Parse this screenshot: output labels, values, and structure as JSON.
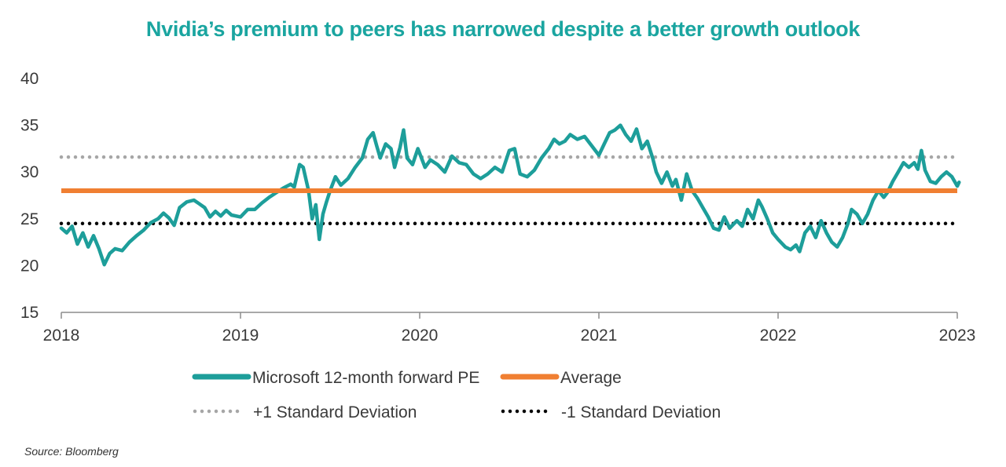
{
  "chart_data": {
    "type": "line",
    "title": "Nvidia’s premium to peers has narrowed despite a better growth outlook",
    "source": "Source: Bloomberg",
    "x_range": [
      2018.0,
      2023.0
    ],
    "x_ticks": [
      "2018",
      "2019",
      "2020",
      "2021",
      "2022",
      "2023"
    ],
    "y_ticks": [
      "15",
      "20",
      "25",
      "30",
      "35",
      "40"
    ],
    "ylim": [
      15,
      40
    ],
    "grid": false,
    "legend_position": "bottom",
    "series": [
      {
        "name": "Microsoft 12-month forward PE",
        "color": "#1d9e9a",
        "style": "solid",
        "points": [
          [
            2018.0,
            24.0
          ],
          [
            2018.03,
            23.5
          ],
          [
            2018.06,
            24.2
          ],
          [
            2018.09,
            22.3
          ],
          [
            2018.12,
            23.5
          ],
          [
            2018.15,
            22.0
          ],
          [
            2018.18,
            23.2
          ],
          [
            2018.21,
            21.8
          ],
          [
            2018.24,
            20.1
          ],
          [
            2018.27,
            21.3
          ],
          [
            2018.3,
            21.8
          ],
          [
            2018.34,
            21.6
          ],
          [
            2018.38,
            22.5
          ],
          [
            2018.42,
            23.2
          ],
          [
            2018.46,
            23.8
          ],
          [
            2018.5,
            24.6
          ],
          [
            2018.54,
            25.0
          ],
          [
            2018.57,
            25.6
          ],
          [
            2018.6,
            25.1
          ],
          [
            2018.63,
            24.3
          ],
          [
            2018.66,
            26.2
          ],
          [
            2018.7,
            26.8
          ],
          [
            2018.74,
            27.0
          ],
          [
            2018.77,
            26.6
          ],
          [
            2018.8,
            26.2
          ],
          [
            2018.83,
            25.2
          ],
          [
            2018.86,
            25.8
          ],
          [
            2018.89,
            25.3
          ],
          [
            2018.92,
            25.9
          ],
          [
            2018.95,
            25.4
          ],
          [
            2019.0,
            25.2
          ],
          [
            2019.04,
            26.0
          ],
          [
            2019.08,
            26.0
          ],
          [
            2019.12,
            26.7
          ],
          [
            2019.16,
            27.3
          ],
          [
            2019.2,
            27.8
          ],
          [
            2019.24,
            28.3
          ],
          [
            2019.28,
            28.7
          ],
          [
            2019.3,
            28.4
          ],
          [
            2019.33,
            30.8
          ],
          [
            2019.35,
            30.5
          ],
          [
            2019.38,
            28.0
          ],
          [
            2019.4,
            25.0
          ],
          [
            2019.42,
            26.5
          ],
          [
            2019.44,
            22.8
          ],
          [
            2019.46,
            25.5
          ],
          [
            2019.48,
            26.8
          ],
          [
            2019.5,
            28.0
          ],
          [
            2019.53,
            29.5
          ],
          [
            2019.56,
            28.6
          ],
          [
            2019.6,
            29.3
          ],
          [
            2019.64,
            30.5
          ],
          [
            2019.68,
            31.5
          ],
          [
            2019.71,
            33.5
          ],
          [
            2019.74,
            34.2
          ],
          [
            2019.76,
            32.8
          ],
          [
            2019.78,
            31.5
          ],
          [
            2019.81,
            33.0
          ],
          [
            2019.84,
            32.5
          ],
          [
            2019.86,
            30.5
          ],
          [
            2019.89,
            32.6
          ],
          [
            2019.91,
            34.5
          ],
          [
            2019.93,
            31.5
          ],
          [
            2019.96,
            30.8
          ],
          [
            2019.99,
            32.5
          ],
          [
            2020.03,
            30.5
          ],
          [
            2020.06,
            31.3
          ],
          [
            2020.1,
            30.8
          ],
          [
            2020.14,
            30.0
          ],
          [
            2020.18,
            31.7
          ],
          [
            2020.22,
            31.0
          ],
          [
            2020.26,
            30.8
          ],
          [
            2020.3,
            29.8
          ],
          [
            2020.34,
            29.3
          ],
          [
            2020.38,
            29.8
          ],
          [
            2020.42,
            30.5
          ],
          [
            2020.46,
            30.0
          ],
          [
            2020.5,
            32.3
          ],
          [
            2020.53,
            32.5
          ],
          [
            2020.56,
            29.8
          ],
          [
            2020.6,
            29.5
          ],
          [
            2020.64,
            30.2
          ],
          [
            2020.68,
            31.5
          ],
          [
            2020.72,
            32.5
          ],
          [
            2020.75,
            33.5
          ],
          [
            2020.78,
            33.0
          ],
          [
            2020.81,
            33.3
          ],
          [
            2020.84,
            34.0
          ],
          [
            2020.88,
            33.5
          ],
          [
            2020.92,
            33.8
          ],
          [
            2020.96,
            32.8
          ],
          [
            2021.0,
            31.8
          ],
          [
            2021.03,
            33.0
          ],
          [
            2021.06,
            34.2
          ],
          [
            2021.09,
            34.5
          ],
          [
            2021.12,
            35.0
          ],
          [
            2021.15,
            34.0
          ],
          [
            2021.18,
            33.3
          ],
          [
            2021.21,
            34.6
          ],
          [
            2021.24,
            32.5
          ],
          [
            2021.27,
            33.3
          ],
          [
            2021.3,
            31.5
          ],
          [
            2021.32,
            30.0
          ],
          [
            2021.35,
            28.8
          ],
          [
            2021.38,
            30.0
          ],
          [
            2021.41,
            28.5
          ],
          [
            2021.43,
            29.2
          ],
          [
            2021.46,
            27.0
          ],
          [
            2021.49,
            29.8
          ],
          [
            2021.52,
            28.0
          ],
          [
            2021.55,
            27.2
          ],
          [
            2021.58,
            26.2
          ],
          [
            2021.61,
            25.2
          ],
          [
            2021.64,
            24.0
          ],
          [
            2021.67,
            23.8
          ],
          [
            2021.7,
            25.2
          ],
          [
            2021.73,
            24.0
          ],
          [
            2021.77,
            24.8
          ],
          [
            2021.8,
            24.2
          ],
          [
            2021.83,
            26.0
          ],
          [
            2021.86,
            25.0
          ],
          [
            2021.89,
            27.0
          ],
          [
            2021.91,
            26.3
          ],
          [
            2021.94,
            25.0
          ],
          [
            2021.97,
            23.5
          ],
          [
            2022.0,
            22.8
          ],
          [
            2022.04,
            22.0
          ],
          [
            2022.07,
            21.7
          ],
          [
            2022.1,
            22.2
          ],
          [
            2022.12,
            21.5
          ],
          [
            2022.15,
            23.5
          ],
          [
            2022.18,
            24.2
          ],
          [
            2022.21,
            23.0
          ],
          [
            2022.24,
            24.8
          ],
          [
            2022.27,
            23.5
          ],
          [
            2022.3,
            22.5
          ],
          [
            2022.33,
            22.0
          ],
          [
            2022.36,
            23.0
          ],
          [
            2022.39,
            24.5
          ],
          [
            2022.41,
            26.0
          ],
          [
            2022.44,
            25.5
          ],
          [
            2022.47,
            24.5
          ],
          [
            2022.5,
            25.5
          ],
          [
            2022.53,
            27.0
          ],
          [
            2022.56,
            28.0
          ],
          [
            2022.59,
            27.3
          ],
          [
            2022.61,
            27.8
          ],
          [
            2022.64,
            29.0
          ],
          [
            2022.67,
            30.0
          ],
          [
            2022.7,
            31.0
          ],
          [
            2022.73,
            30.5
          ],
          [
            2022.76,
            31.0
          ],
          [
            2022.78,
            30.3
          ],
          [
            2022.8,
            32.3
          ],
          [
            2022.82,
            30.2
          ],
          [
            2022.85,
            29.0
          ],
          [
            2022.88,
            28.8
          ],
          [
            2022.91,
            29.5
          ],
          [
            2022.94,
            30.0
          ],
          [
            2022.97,
            29.5
          ],
          [
            2023.0,
            28.5
          ],
          [
            2023.01,
            28.9
          ]
        ]
      },
      {
        "name": "Average",
        "color": "#f07f32",
        "style": "solid",
        "value": 28.0
      },
      {
        "name": "+1 Standard Deviation",
        "color": "#a6a6a6",
        "style": "dotted",
        "value": 31.6
      },
      {
        "name": "-1 Standard Deviation",
        "color": "#000000",
        "style": "dotted",
        "value": 24.5
      }
    ]
  }
}
